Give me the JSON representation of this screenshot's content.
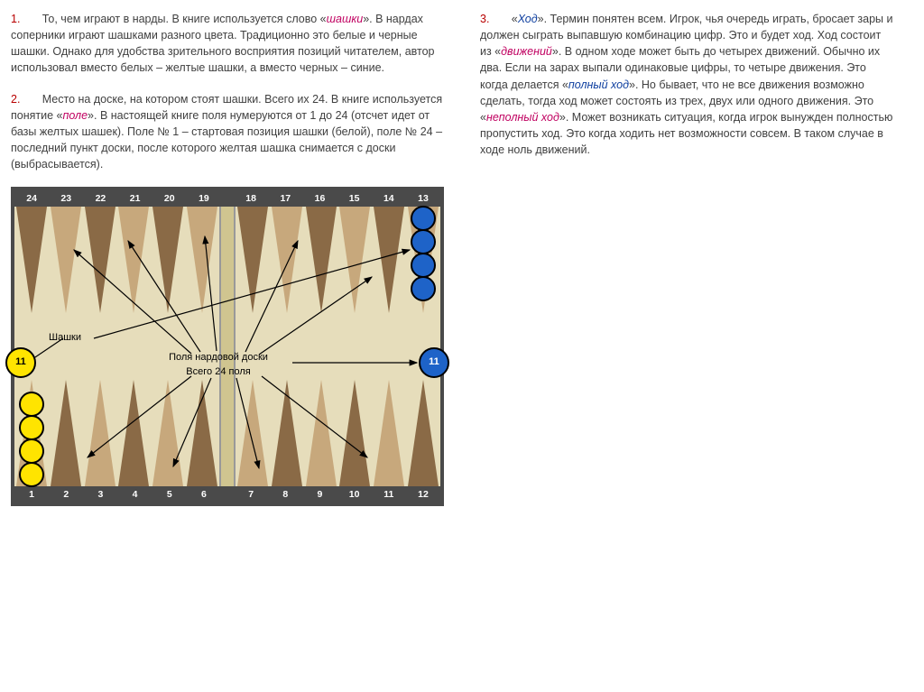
{
  "colors": {
    "num": "#b80000",
    "term": "#c00060",
    "term_blue": "#1040a0",
    "board_frame": "#4a4a4a",
    "board_field": "#e6ddbb",
    "pt_dark": "#8a6a46",
    "pt_lite": "#c7a87c",
    "blue": "#1e63c8",
    "yellow": "#ffe400"
  },
  "left": {
    "p1_num": "1.",
    "p1_a": "То, чем играют в нарды. В книге используется слово «",
    "p1_term": "шашки",
    "p1_b": "». В нардах соперники играют шашками разного цвета. Традиционно это белые и черные шашки. Однако для удобства зрительного восприятия позиций читателем, автор использовал вместо белых – желтые шашки, а вместо черных – синие.",
    "p2_num": "2.",
    "p2_a": "Место на доске, на котором стоят шашки. Всего их 24. В книге используется понятие «",
    "p2_term": "поле",
    "p2_b": "». В настоящей книге поля нумеруются от 1 до 24 (отсчет идет от базы желтых шашек). Поле № 1 – стартовая позиция шашки (белой), поле № 24 – последний пункт доски, после которого желтая шашка снимается с доски (выбрасывается)."
  },
  "right": {
    "p3_num": "3.",
    "p3_a": "«",
    "p3_term1": "Ход",
    "p3_b": "». Термин понятен всем. Игрок, чья очередь играть, бросает зары и должен сыграть выпавшую комбинацию цифр. Это и будет ход. Ход состоит из «",
    "p3_term2": "движений",
    "p3_c": "». В одном ходе может быть до четырех движений. Обычно их два. Если на зарах выпали одинаковые цифры, то четыре движения. Это когда делается «",
    "p3_term3": "полный ход",
    "p3_d": "». Но бывает, что не все движения возможно сделать, тогда ход может состоять из трех, двух или одного движения. Это «",
    "p3_term4": "неполный ход",
    "p3_e": "». Может возникать ситуация, когда игрок вынужден полностью пропустить ход. Это когда ходить нет возможности совсем. В таком случае в ходе ноль движений."
  },
  "board": {
    "top_nums": [
      "24",
      "23",
      "22",
      "21",
      "20",
      "19",
      "18",
      "17",
      "16",
      "15",
      "14",
      "13"
    ],
    "bot_nums": [
      "1",
      "2",
      "3",
      "4",
      "5",
      "6",
      "7",
      "8",
      "9",
      "10",
      "11",
      "12"
    ],
    "label_shashki": "Шашки",
    "label_fields_1": "Поля нардовой доски",
    "label_fields_2": "Всего 24 поля",
    "side_yellow_num": "11",
    "side_blue_num": "11",
    "blue_stack_count": 4,
    "yellow_stack_count": 4
  }
}
